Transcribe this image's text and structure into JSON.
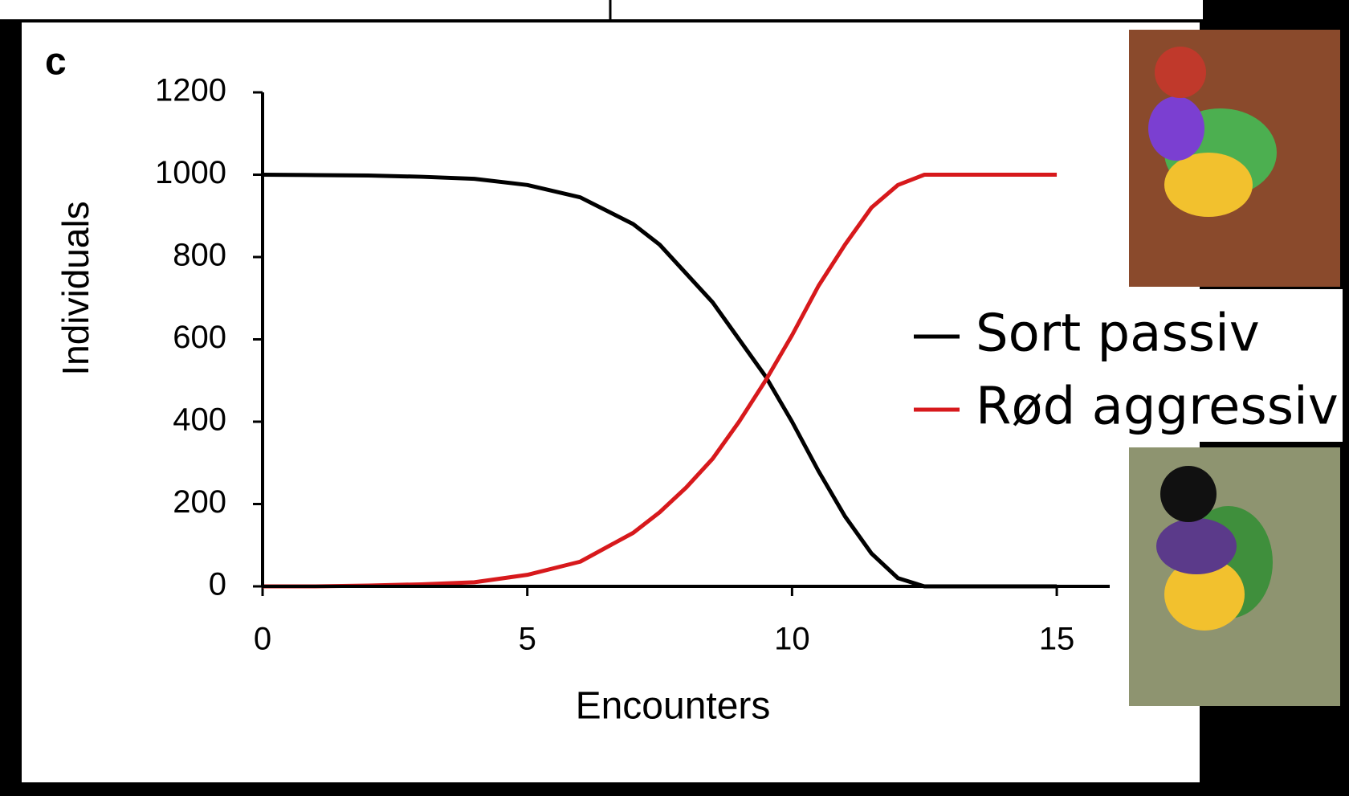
{
  "chart_data": {
    "type": "line",
    "panel_label": "c",
    "xlabel": "Encounters",
    "ylabel": "Individuals",
    "x": [
      0,
      1,
      2,
      3,
      4,
      5,
      6,
      7,
      7.5,
      8,
      8.5,
      9,
      9.5,
      10,
      10.5,
      11,
      11.5,
      12,
      12.5,
      13,
      14,
      15
    ],
    "series": [
      {
        "name": "Sort passiv",
        "color": "#000000",
        "values": [
          1000,
          999,
          998,
          995,
          990,
          975,
          945,
          880,
          830,
          760,
          690,
          600,
          510,
          400,
          280,
          170,
          80,
          20,
          0,
          0,
          0,
          0
        ]
      },
      {
        "name": "Rød aggressiv",
        "color": "#d7191c",
        "values": [
          0,
          0,
          2,
          5,
          10,
          28,
          60,
          130,
          180,
          240,
          310,
          400,
          500,
          610,
          730,
          830,
          920,
          975,
          1000,
          1000,
          1000,
          1000
        ]
      }
    ],
    "xlim": [
      0,
      16
    ],
    "ylim": [
      0,
      1200
    ],
    "xticks": [
      0,
      5,
      10,
      15
    ],
    "yticks": [
      0,
      200,
      400,
      600,
      800,
      1000,
      1200
    ],
    "grid": false,
    "legend": "right"
  }
}
